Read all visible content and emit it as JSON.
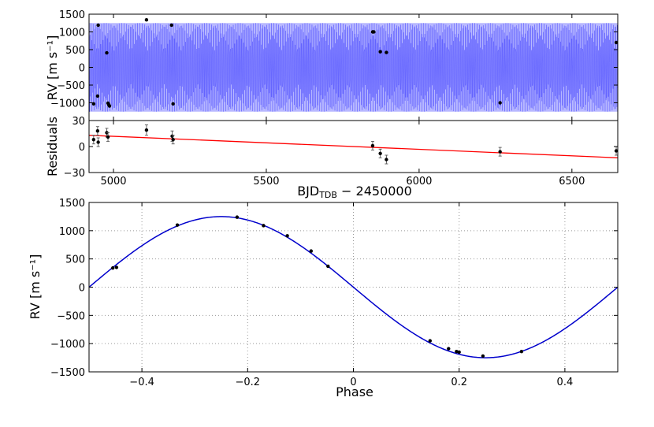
{
  "chart_data": [
    {
      "type": "scatter",
      "panel": "rv-vs-time",
      "ylabel": "RV [m s⁻¹]",
      "xlim": [
        4920,
        6650
      ],
      "ylim": [
        -1500,
        1500
      ],
      "yticks": [
        1500,
        1000,
        500,
        0,
        -500,
        -1000
      ],
      "model_band": {
        "color": "#3333ff",
        "amplitude": 1250
      },
      "points": {
        "x": [
          4935,
          4948,
          4950,
          4978,
          4982,
          4985,
          4987,
          5108,
          5190,
          5195,
          5848,
          5852,
          5873,
          5893,
          6265,
          6645
        ],
        "y": [
          -1030,
          -810,
          1190,
          410,
          -1010,
          -1060,
          -1090,
          1340,
          1190,
          -1030,
          1000,
          1000,
          440,
          420,
          -1000,
          700
        ]
      }
    },
    {
      "type": "scatter",
      "panel": "residuals",
      "ylabel": "Residuals",
      "xlabel": "BJD",
      "xlabel_sub": "TDB",
      "xlabel_suffix": " − 2450000",
      "xlim": [
        4920,
        6650
      ],
      "ylim": [
        -30,
        30
      ],
      "xticks": [
        5000,
        5500,
        6000,
        6500
      ],
      "yticks": [
        30,
        0,
        -30
      ],
      "trend": {
        "x": [
          4920,
          6650
        ],
        "y": [
          13,
          -13
        ],
        "color": "#ff0000"
      },
      "points": {
        "x": [
          4935,
          4948,
          4950,
          4978,
          4982,
          5108,
          5192,
          5195,
          5848,
          5873,
          5893,
          6265,
          6645
        ],
        "y": [
          8,
          18,
          5,
          16,
          11,
          19,
          12,
          8,
          1,
          -8,
          -15,
          -6,
          -5
        ],
        "err": [
          5,
          5,
          5,
          5,
          5,
          6,
          6,
          5,
          5,
          5,
          5,
          5,
          5
        ]
      }
    },
    {
      "type": "line",
      "panel": "phase-folded",
      "xlabel": "Phase",
      "ylabel": "RV [m s⁻¹]",
      "xlim": [
        -0.5,
        0.5
      ],
      "ylim": [
        -1500,
        1500
      ],
      "xticks": [
        -0.4,
        -0.2,
        0.0,
        0.2,
        0.4
      ],
      "yticks": [
        1500,
        1000,
        500,
        0,
        -500,
        -1000,
        -1500
      ],
      "grid": true,
      "model": {
        "amplitude": 1250,
        "period_phase": 1.0,
        "color": "#0000cc"
      },
      "points": {
        "x": [
          -0.455,
          -0.448,
          -0.333,
          -0.22,
          -0.17,
          -0.125,
          -0.08,
          -0.048,
          0.145,
          0.18,
          0.195,
          0.2,
          0.245,
          0.318
        ],
        "y": [
          340,
          350,
          1100,
          1240,
          1090,
          910,
          640,
          370,
          -950,
          -1090,
          -1140,
          -1150,
          -1220,
          -1140
        ]
      }
    }
  ]
}
